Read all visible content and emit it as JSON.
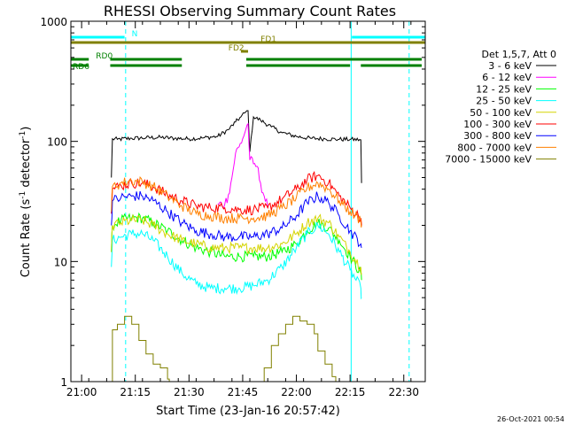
{
  "chart_data": {
    "type": "line",
    "title": "RHESSI Observing Summary Count Rates",
    "xlabel": "Start Time (23-Jan-16 20:57:42)",
    "ylabel_main": "Count Rate (s",
    "ylabel_sup1": "-1",
    "ylabel_mid": " detector",
    "ylabel_sup2": "-1",
    "ylabel_end": ")",
    "yscale": "log",
    "xlim_min": [
      -1,
      98
    ],
    "ylim": [
      1,
      1000
    ],
    "x_ticks": [
      {
        "label": "21:00",
        "min": 2
      },
      {
        "label": "21:15",
        "min": 17
      },
      {
        "label": "21:30",
        "min": 32
      },
      {
        "label": "21:45",
        "min": 47
      },
      {
        "label": "22:00",
        "min": 62
      },
      {
        "label": "22:15",
        "min": 77
      },
      {
        "label": "22:30",
        "min": 92
      }
    ],
    "y_ticks": [
      {
        "label": "1",
        "value": 1
      },
      {
        "label": "10",
        "value": 10
      },
      {
        "label": "100",
        "value": 100
      },
      {
        "label": "1000",
        "value": 1000
      }
    ],
    "legend_title": "Det 1,5,7, Att 0",
    "legend_position": "right",
    "series": [
      {
        "name": "3 - 6 keV",
        "color": "#000000",
        "x": [
          10.3,
          10.6,
          12,
          16,
          20,
          24,
          28,
          32,
          36,
          40,
          43,
          45,
          46.5,
          47.5,
          48.5,
          49,
          50,
          52,
          55,
          58,
          62,
          66,
          70,
          74,
          77,
          80,
          80.2
        ],
        "y": [
          50,
          105,
          104,
          106,
          107,
          108,
          106,
          105,
          107,
          110,
          125,
          145,
          160,
          172,
          180,
          82,
          160,
          150,
          132,
          118,
          110,
          106,
          105,
          104,
          104,
          103,
          45
        ]
      },
      {
        "name": "6 - 12 keV",
        "color": "#ff00ff",
        "x": [
          40,
          42,
          43,
          44,
          45,
          46,
          47,
          48,
          48.5,
          49,
          50,
          51,
          52,
          53,
          54
        ],
        "y": [
          30,
          30,
          36,
          50,
          80,
          90,
          105,
          130,
          140,
          70,
          65,
          62,
          45,
          35,
          28
        ]
      },
      {
        "name": "12 - 25 keV",
        "color": "#00ff00",
        "x": [
          10.3,
          10.6,
          13,
          16,
          19,
          22,
          26,
          30,
          34,
          38,
          42,
          46,
          50,
          54,
          58,
          62,
          65,
          68,
          71,
          74,
          77,
          80,
          80.2
        ],
        "y": [
          12,
          20,
          22,
          23,
          23,
          21,
          18,
          15,
          13,
          12,
          11,
          11,
          11,
          11,
          12,
          14,
          18,
          21,
          19,
          15,
          11,
          8,
          7
        ]
      },
      {
        "name": "25 - 50 keV",
        "color": "#00ffff",
        "x": [
          10.3,
          10.6,
          13,
          16,
          19,
          22,
          26,
          30,
          34,
          38,
          42,
          46,
          50,
          54,
          58,
          62,
          65,
          68,
          71,
          74,
          77,
          80,
          80.2
        ],
        "y": [
          9,
          15,
          16,
          17,
          17,
          15,
          11,
          8,
          6.5,
          6,
          6,
          6,
          6.3,
          7,
          9,
          13,
          17,
          20,
          17,
          12,
          8.5,
          6,
          5
        ]
      },
      {
        "name": "50 - 100 keV",
        "color": "#d4d400",
        "x": [
          10.3,
          10.6,
          13,
          16,
          19,
          22,
          26,
          30,
          34,
          38,
          42,
          46,
          50,
          54,
          58,
          62,
          65,
          68,
          71,
          74,
          77,
          80,
          80.2
        ],
        "y": [
          12,
          20,
          21,
          22,
          22,
          20,
          17,
          15,
          14,
          13,
          13,
          13,
          13,
          13,
          14,
          17,
          21,
          23,
          21,
          16,
          12,
          9,
          8
        ]
      },
      {
        "name": "100 - 300 keV",
        "color": "#ff0000",
        "x": [
          10.3,
          10.6,
          13,
          16,
          19,
          22,
          26,
          30,
          34,
          38,
          42,
          46,
          50,
          54,
          58,
          62,
          65,
          68,
          71,
          74,
          77,
          80,
          80.2
        ],
        "y": [
          25,
          40,
          43,
          45,
          45,
          42,
          36,
          32,
          29,
          28,
          28,
          27,
          27,
          28,
          33,
          40,
          48,
          52,
          45,
          35,
          28,
          23,
          20
        ]
      },
      {
        "name": "300 - 800 keV",
        "color": "#0000ff",
        "x": [
          10.3,
          10.6,
          13,
          16,
          19,
          22,
          26,
          30,
          34,
          38,
          42,
          46,
          50,
          54,
          58,
          62,
          65,
          68,
          71,
          74,
          77,
          80,
          80.2
        ],
        "y": [
          20,
          32,
          34,
          35,
          35,
          32,
          26,
          21,
          18,
          17,
          16,
          16,
          16,
          17,
          19,
          24,
          31,
          35,
          31,
          24,
          18,
          14,
          13
        ]
      },
      {
        "name": "800 - 7000 keV",
        "color": "#ff8000",
        "x": [
          10.3,
          10.6,
          13,
          16,
          19,
          22,
          26,
          30,
          34,
          38,
          42,
          46,
          50,
          54,
          58,
          62,
          65,
          68,
          71,
          74,
          77,
          80,
          80.2
        ],
        "y": [
          26,
          42,
          45,
          47,
          46,
          42,
          35,
          29,
          25,
          24,
          23,
          23,
          23,
          24,
          28,
          34,
          41,
          45,
          40,
          32,
          26,
          22,
          20
        ]
      },
      {
        "name": "7000 - 15000 keV",
        "color": "#808000",
        "x": [
          10.3,
          10.6,
          12,
          14,
          16,
          18,
          20,
          22,
          24,
          26,
          26.5,
          52,
          53,
          55,
          57,
          59,
          61,
          63,
          65,
          67,
          68,
          70,
          72,
          73
        ],
        "y": [
          1,
          2.7,
          3,
          3.5,
          3,
          2.2,
          1.7,
          1.4,
          1.3,
          1.05,
          1,
          1,
          1.3,
          2,
          2.5,
          3,
          3.5,
          3.2,
          3,
          2.5,
          1.8,
          1.4,
          1.1,
          1
        ]
      }
    ],
    "state_bars": [
      {
        "label": "N",
        "color": "#00ffff",
        "level": 5,
        "segments": [
          [
            -1,
            14
          ],
          [
            77.5,
            98
          ]
        ]
      },
      {
        "label": "FD1",
        "color": "#808000",
        "level": 4,
        "segments": [
          [
            -1,
            98
          ]
        ]
      },
      {
        "label": "FD2",
        "color": "#808000",
        "level": 3,
        "segments": [
          [
            46.5,
            48.5
          ]
        ]
      },
      {
        "label": "RD0",
        "color": "#008000",
        "level": 2,
        "segments": [
          [
            -1,
            4
          ],
          [
            10,
            30
          ],
          [
            48,
            97
          ]
        ]
      },
      {
        "label": "RD6",
        "color": "#008000",
        "level": 1,
        "segments": [
          [
            -1,
            4
          ],
          [
            10,
            30
          ],
          [
            48,
            77
          ],
          [
            80,
            97
          ]
        ]
      }
    ],
    "vertical_markers": [
      {
        "min": -1,
        "color": "#00ffff",
        "style": "solid"
      },
      {
        "min": 14.3,
        "color": "#00ffff",
        "style": "dashed"
      },
      {
        "min": 77.3,
        "color": "#00ffff",
        "style": "solid"
      },
      {
        "min": 93.5,
        "color": "#00ffff",
        "style": "dashed"
      }
    ],
    "timestamp": "26-Oct-2021 00:54"
  }
}
